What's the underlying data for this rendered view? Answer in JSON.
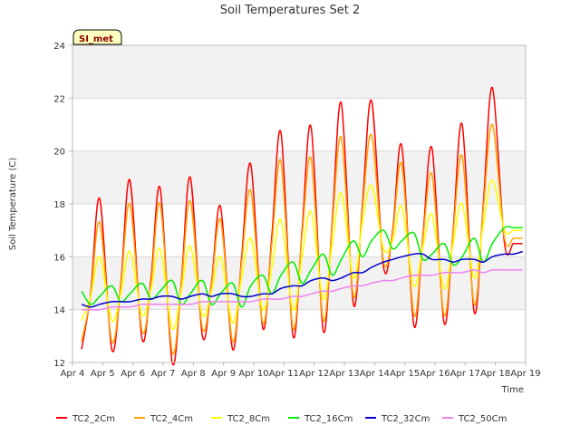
{
  "chart_data": {
    "type": "line",
    "title": "Soil Temperatures Set 2",
    "xlabel": "Time",
    "ylabel": "Soil Temperature (C)",
    "badge": "SI_met",
    "ylim": [
      12,
      24
    ],
    "yticks": [
      "12",
      "14",
      "16",
      "18",
      "20",
      "22",
      "24"
    ],
    "xlim": [
      "Apr 4",
      "Apr 19"
    ],
    "xticks": [
      "Apr 4",
      "Apr 5",
      "Apr 6",
      "Apr 7",
      "Apr 8",
      "Apr 9",
      "Apr 10",
      "Apr 11",
      "Apr 12",
      "Apr 13",
      "Apr 14",
      "Apr 15",
      "Apr 16",
      "Apr 17",
      "Apr 18",
      "Apr 19"
    ],
    "grid": true,
    "legend_position": "bottom",
    "x": [
      4.3,
      4.6,
      4.9,
      5.3,
      5.6,
      5.9,
      6.3,
      6.6,
      6.9,
      7.3,
      7.6,
      7.9,
      8.3,
      8.6,
      8.9,
      9.3,
      9.6,
      9.9,
      10.3,
      10.6,
      10.9,
      11.3,
      11.6,
      11.9,
      12.3,
      12.6,
      12.9,
      13.3,
      13.6,
      13.9,
      14.3,
      14.6,
      14.9,
      15.3,
      15.6,
      15.9,
      16.3,
      16.6,
      16.9,
      17.3,
      17.6,
      17.9,
      18.3,
      18.6,
      18.9
    ],
    "series": [
      {
        "name": "TC2_2Cm",
        "color": "#ff0000",
        "values": [
          12.5,
          14.6,
          18.2,
          12.5,
          15.0,
          18.9,
          12.9,
          15.2,
          18.6,
          12.0,
          15.0,
          19.0,
          13.0,
          15.0,
          17.9,
          12.5,
          16.0,
          19.5,
          13.3,
          16.8,
          20.7,
          13.0,
          17.0,
          20.9,
          13.2,
          17.4,
          21.8,
          14.2,
          18.0,
          21.9,
          15.6,
          17.0,
          20.2,
          13.4,
          16.8,
          20.1,
          13.5,
          17.0,
          21.0,
          13.9,
          18.0,
          22.4,
          16.5,
          16.5,
          16.5
        ]
      },
      {
        "name": "TC2_4Cm",
        "color": "#ffa500",
        "values": [
          12.8,
          14.5,
          17.3,
          12.8,
          14.9,
          18.0,
          13.2,
          15.0,
          18.0,
          12.4,
          14.9,
          18.1,
          13.3,
          14.9,
          17.4,
          12.8,
          15.8,
          18.5,
          13.5,
          16.5,
          19.6,
          13.3,
          16.8,
          19.7,
          13.6,
          17.2,
          20.5,
          14.5,
          17.8,
          20.6,
          15.8,
          16.9,
          19.5,
          13.8,
          16.7,
          19.1,
          13.8,
          16.9,
          19.8,
          14.2,
          17.8,
          21.0,
          16.7,
          16.7,
          16.7
        ]
      },
      {
        "name": "TC2_8Cm",
        "color": "#ffff00",
        "values": [
          13.6,
          14.5,
          16.0,
          13.6,
          14.6,
          16.2,
          13.8,
          14.8,
          16.3,
          13.3,
          14.7,
          16.4,
          13.8,
          14.7,
          16.0,
          13.5,
          15.2,
          16.7,
          14.0,
          15.6,
          17.4,
          14.0,
          16.0,
          17.7,
          14.4,
          16.5,
          18.4,
          15.2,
          17.3,
          18.7,
          16.3,
          16.6,
          17.9,
          14.9,
          16.4,
          17.6,
          14.8,
          16.5,
          18.0,
          15.2,
          17.2,
          18.9,
          17.0,
          17.0,
          17.0
        ]
      },
      {
        "name": "TC2_16Cm",
        "color": "#00ee00",
        "values": [
          14.7,
          14.2,
          14.5,
          14.9,
          14.3,
          14.6,
          15.0,
          14.4,
          14.7,
          15.1,
          14.2,
          14.6,
          15.1,
          14.2,
          14.6,
          15.0,
          14.1,
          14.9,
          15.3,
          14.6,
          15.3,
          15.8,
          15.0,
          15.5,
          16.1,
          15.3,
          15.9,
          16.6,
          16.0,
          16.6,
          17.0,
          16.3,
          16.6,
          16.9,
          15.9,
          16.1,
          16.5,
          15.7,
          16.0,
          16.7,
          15.8,
          16.5,
          17.1,
          17.1,
          17.1
        ]
      },
      {
        "name": "TC2_32Cm",
        "color": "#0000cd",
        "values": [
          14.2,
          14.1,
          14.2,
          14.3,
          14.3,
          14.3,
          14.4,
          14.4,
          14.5,
          14.5,
          14.4,
          14.5,
          14.6,
          14.5,
          14.6,
          14.6,
          14.5,
          14.5,
          14.6,
          14.6,
          14.8,
          14.9,
          14.9,
          15.1,
          15.2,
          15.1,
          15.2,
          15.4,
          15.4,
          15.6,
          15.8,
          15.9,
          16.0,
          16.1,
          16.1,
          15.9,
          15.9,
          15.8,
          15.9,
          15.9,
          15.8,
          16.0,
          16.1,
          16.1,
          16.2
        ]
      },
      {
        "name": "TC2_50Cm",
        "color": "#ee82ee",
        "values": [
          14.0,
          14.0,
          14.0,
          14.1,
          14.1,
          14.1,
          14.2,
          14.2,
          14.2,
          14.2,
          14.2,
          14.2,
          14.3,
          14.3,
          14.3,
          14.3,
          14.3,
          14.3,
          14.4,
          14.4,
          14.4,
          14.5,
          14.5,
          14.6,
          14.7,
          14.7,
          14.8,
          14.9,
          14.9,
          15.0,
          15.1,
          15.1,
          15.2,
          15.3,
          15.3,
          15.3,
          15.4,
          15.4,
          15.4,
          15.5,
          15.4,
          15.5,
          15.5,
          15.5,
          15.5
        ]
      }
    ]
  },
  "colors": {
    "band": "#f2f2f2",
    "grid": "#d9d9d9",
    "axis": "#bbbbbb",
    "badge_fill": "#ffffc0"
  }
}
